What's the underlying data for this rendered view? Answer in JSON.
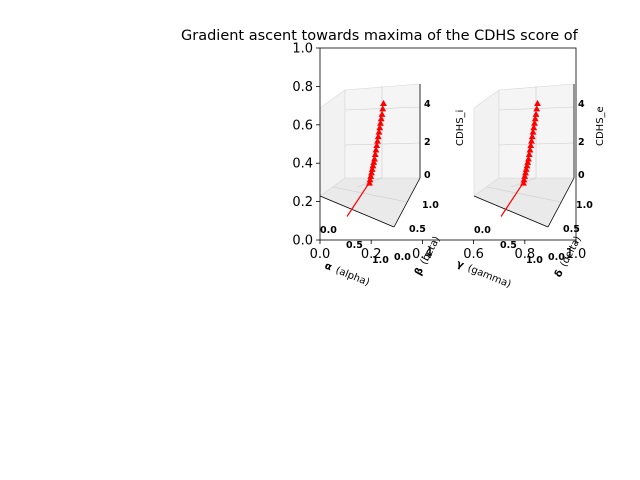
{
  "figure": {
    "title": "Gradient ascent towards maxima of the CDHS score of"
  },
  "outer_axes": {
    "xlim": [
      0,
      1
    ],
    "ylim": [
      0,
      1
    ],
    "x_ticks": [
      "0.0",
      "0.2",
      "0.4",
      "0.6",
      "0.8",
      "1.0"
    ],
    "y_ticks": [
      "0.0",
      "0.2",
      "0.4",
      "0.6",
      "0.8",
      "1.0"
    ]
  },
  "chart_data": [
    {
      "type": "scatter",
      "projection": "3d",
      "x_label": "α (alpha)",
      "x_symbol": "α",
      "x_name": "(alpha)",
      "y_label": "β (beta)",
      "y_symbol": "β",
      "y_name": "(beta)",
      "z_label": "CDHS_i",
      "x_ticks": [
        "0.0",
        "0.5",
        "1.0"
      ],
      "y_ticks": [
        "0.0",
        "0.5",
        "1.0"
      ],
      "z_ticks": [
        "0",
        "2",
        "4"
      ],
      "xlim": [
        0,
        1
      ],
      "ylim": [
        0,
        1
      ],
      "zlim": [
        0,
        5
      ],
      "series": [
        {
          "marker": "triangle",
          "color": "#ff0000",
          "x": [
            0.5,
            0.5,
            0.5,
            0.5,
            0.5,
            0.5,
            0.5,
            0.5,
            0.5,
            0.5,
            0.5,
            0.5,
            0.5,
            0.5,
            0.5,
            0.5,
            0.5,
            0.5,
            0.5,
            0.5
          ],
          "y": [
            0.5,
            0.52,
            0.55,
            0.58,
            0.61,
            0.64,
            0.67,
            0.7,
            0.73,
            0.76,
            0.79,
            0.82,
            0.85,
            0.88,
            0.91,
            0.94,
            0.97,
            1.0,
            1.03,
            1.06
          ],
          "z": [
            1.0,
            1.15,
            1.3,
            1.45,
            1.6,
            1.75,
            1.9,
            2.05,
            2.25,
            2.45,
            2.65,
            2.85,
            3.05,
            3.25,
            3.45,
            3.65,
            3.85,
            4.05,
            4.3,
            4.55
          ]
        }
      ]
    },
    {
      "type": "scatter",
      "projection": "3d",
      "x_label": "γ (gamma)",
      "x_symbol": "γ",
      "x_name": "(gamma)",
      "y_label": "δ (delta)",
      "y_symbol": "δ",
      "y_name": "(delta)",
      "z_label": "CDHS_e",
      "x_ticks": [
        "0.0",
        "0.5",
        "1.0"
      ],
      "y_ticks": [
        "0.0",
        "0.5",
        "1.0"
      ],
      "z_ticks": [
        "0",
        "2",
        "4"
      ],
      "xlim": [
        0,
        1
      ],
      "ylim": [
        0,
        1
      ],
      "zlim": [
        0,
        5
      ],
      "series": [
        {
          "marker": "triangle",
          "color": "#ff0000",
          "x": [
            0.5,
            0.5,
            0.5,
            0.5,
            0.5,
            0.5,
            0.5,
            0.5,
            0.5,
            0.5,
            0.5,
            0.5,
            0.5,
            0.5,
            0.5,
            0.5,
            0.5,
            0.5,
            0.5,
            0.5
          ],
          "y": [
            0.5,
            0.52,
            0.55,
            0.58,
            0.61,
            0.64,
            0.67,
            0.7,
            0.73,
            0.76,
            0.79,
            0.82,
            0.85,
            0.88,
            0.91,
            0.94,
            0.97,
            1.0,
            1.03,
            1.06
          ],
          "z": [
            1.0,
            1.15,
            1.3,
            1.45,
            1.6,
            1.75,
            1.9,
            2.05,
            2.25,
            2.45,
            2.65,
            2.85,
            3.05,
            3.25,
            3.45,
            3.65,
            3.85,
            4.05,
            4.3,
            4.55
          ]
        }
      ]
    }
  ]
}
